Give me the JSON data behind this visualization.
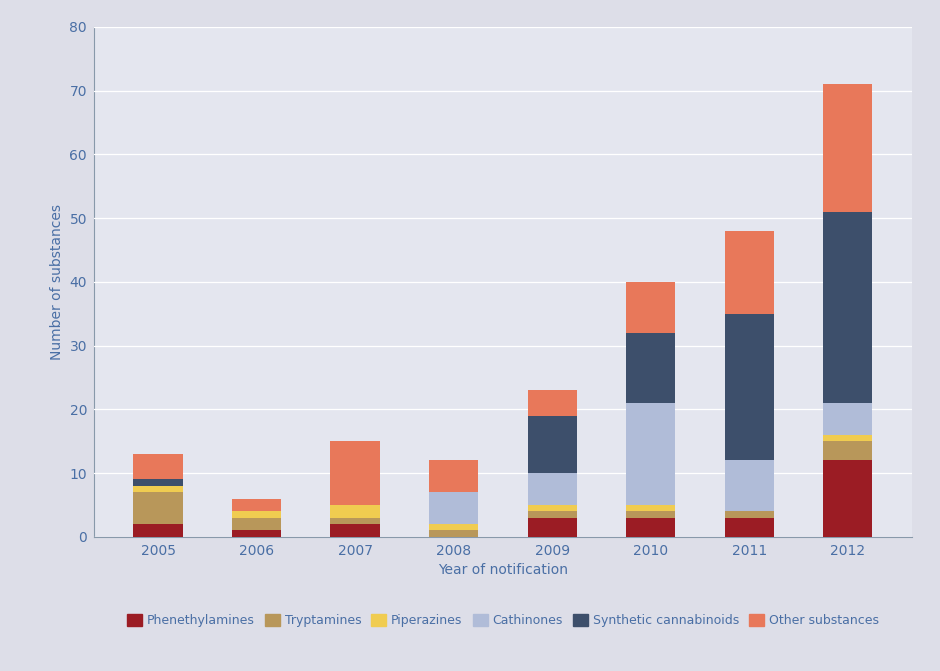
{
  "years": [
    "2005",
    "2006",
    "2007",
    "2008",
    "2009",
    "2010",
    "2011",
    "2012"
  ],
  "categories": [
    "Phenethylamines",
    "Tryptamines",
    "Piperazines",
    "Cathinones",
    "Synthetic cannabinoids",
    "Other substances"
  ],
  "colors": [
    "#9b1c24",
    "#b8975a",
    "#f0cc50",
    "#b0bcd8",
    "#3d4f6b",
    "#e8785a"
  ],
  "values": {
    "Phenethylamines": [
      2,
      1,
      2,
      0,
      3,
      3,
      3,
      12
    ],
    "Tryptamines": [
      5,
      2,
      1,
      1,
      1,
      1,
      1,
      3
    ],
    "Piperazines": [
      1,
      1,
      2,
      1,
      1,
      1,
      0,
      1
    ],
    "Cathinones": [
      0,
      0,
      0,
      5,
      5,
      16,
      8,
      5
    ],
    "Synthetic cannabinoids": [
      1,
      0,
      0,
      0,
      9,
      11,
      23,
      30
    ],
    "Other substances": [
      4,
      2,
      10,
      5,
      4,
      8,
      13,
      20
    ]
  },
  "ylabel": "Number of substances",
  "xlabel": "Year of notification",
  "ylim": [
    0,
    80
  ],
  "yticks": [
    0,
    10,
    20,
    30,
    40,
    50,
    60,
    70,
    80
  ],
  "background_color": "#dddee8",
  "plot_background_color": "#e4e6ef",
  "axis_label_fontsize": 10,
  "tick_fontsize": 10,
  "legend_fontsize": 9,
  "bar_width": 0.5,
  "tick_color": "#4a6fa5",
  "grid_color": "#ffffff",
  "spine_color": "#8899aa"
}
